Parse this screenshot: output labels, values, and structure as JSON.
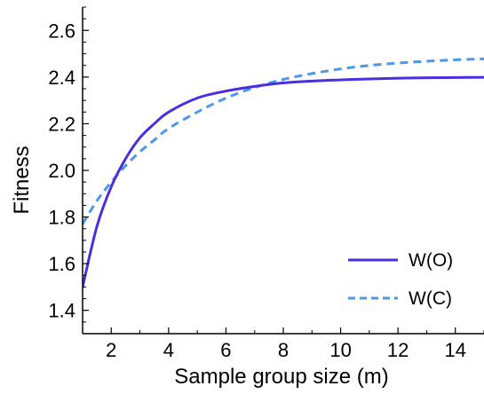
{
  "chart_data": {
    "type": "line",
    "xlabel": "Sample group size (m)",
    "ylabel": "Fitness",
    "xlim": [
      1,
      15
    ],
    "ylim": [
      1.3,
      2.7
    ],
    "x_ticks": [
      2,
      4,
      6,
      8,
      10,
      12,
      14
    ],
    "x_tick_labels": [
      "2",
      "4",
      "6",
      "8",
      "10",
      "12",
      "14"
    ],
    "y_ticks": [
      1.4,
      1.6,
      1.8,
      2.0,
      2.2,
      2.4,
      2.6
    ],
    "y_tick_labels": [
      "1.4",
      "1.6",
      "1.8",
      "2.0",
      "2.2",
      "2.4",
      "2.6"
    ],
    "grid": false,
    "legend_position": "bottom-right",
    "x": [
      1,
      1.5,
      2,
      2.5,
      3,
      3.5,
      4,
      5,
      6,
      7,
      8,
      9,
      10,
      11,
      12,
      13,
      14,
      15
    ],
    "series": [
      {
        "name": "W(O)",
        "color": "#4a2fe0",
        "style": "solid",
        "values": [
          1.5,
          1.76,
          1.93,
          2.05,
          2.14,
          2.2,
          2.25,
          2.31,
          2.34,
          2.36,
          2.375,
          2.383,
          2.388,
          2.392,
          2.395,
          2.397,
          2.398,
          2.399
        ]
      },
      {
        "name": "W(C)",
        "color": "#4d97ec",
        "style": "dashed",
        "values": [
          1.77,
          1.87,
          1.95,
          2.02,
          2.08,
          2.13,
          2.18,
          2.25,
          2.31,
          2.355,
          2.39,
          2.415,
          2.435,
          2.45,
          2.46,
          2.468,
          2.474,
          2.478
        ]
      }
    ]
  }
}
